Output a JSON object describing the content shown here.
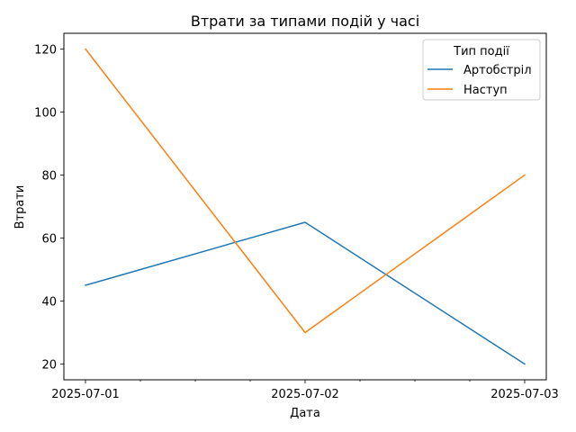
{
  "chart_data": {
    "type": "line",
    "title": "Втрати за типами подій у часі",
    "xlabel": "Дата",
    "ylabel": "Втрати",
    "x": [
      "2025-07-01",
      "2025-07-02",
      "2025-07-03"
    ],
    "x_ticks": [
      "2025-07-01",
      "2025-07-02",
      "2025-07-03"
    ],
    "x_minor_ticks_between": 3,
    "y_ticks": [
      20,
      40,
      60,
      80,
      100,
      120
    ],
    "ylim": [
      15,
      125
    ],
    "grid": false,
    "legend": {
      "title": "Тип події",
      "placement": "top-right"
    },
    "series": [
      {
        "name": "Артобстріл",
        "color": "#1f77b4",
        "values": [
          45,
          65,
          20
        ]
      },
      {
        "name": "Наступ",
        "color": "#ff7f0e",
        "values": [
          120,
          30,
          80
        ]
      }
    ]
  }
}
